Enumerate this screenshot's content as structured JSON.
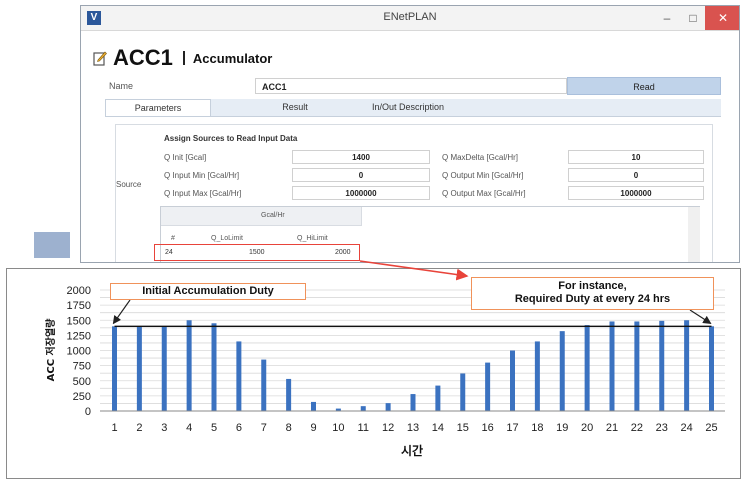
{
  "window": {
    "title": "ENetPLAN",
    "app_icon": "V",
    "minimize": "–",
    "maximize": "□",
    "close": "✕"
  },
  "header": {
    "block_name": "ACC1",
    "block_type": "Accumulator"
  },
  "name_field": {
    "label": "Name",
    "value": "ACC1"
  },
  "read_button": "Read",
  "tabs": [
    "Parameters",
    "Result",
    "In/Out Description"
  ],
  "source": {
    "label": "Source",
    "title": "Assign Sources to Read Input Data",
    "params": [
      {
        "label": "Q Init [Gcal]",
        "value": "1400"
      },
      {
        "label": "Q Input Min [Gcal/Hr]",
        "value": "0"
      },
      {
        "label": "Q Input Max [Gcal/Hr]",
        "value": "1000000"
      },
      {
        "label": "Q MaxDelta [Gcal/Hr]",
        "value": "10"
      },
      {
        "label": "Q Output Min [Gcal/Hr]",
        "value": "0"
      },
      {
        "label": "Q Output Max [Gcal/Hr]",
        "value": "1000000"
      }
    ]
  },
  "table": {
    "group_header": "Gcal/Hr",
    "columns": [
      "#",
      "Q_LoLimit",
      "Q_HiLimit"
    ],
    "row": [
      "24",
      "1500",
      "2000"
    ]
  },
  "callouts": {
    "left": "Initial Accumulation Duty",
    "right_line1": "For instance,",
    "right_line2": "Required Duty at every 24 hrs"
  },
  "colors": {
    "bar": "#3b72c0",
    "callout_border": "#f0925a",
    "highlight": "#e8433a",
    "read_button": "#c0d3ea"
  },
  "chart_data": {
    "type": "bar",
    "categories": [
      "1",
      "2",
      "3",
      "4",
      "5",
      "6",
      "7",
      "8",
      "9",
      "10",
      "11",
      "12",
      "13",
      "14",
      "15",
      "16",
      "17",
      "18",
      "19",
      "20",
      "21",
      "22",
      "23",
      "24",
      "25"
    ],
    "values": [
      1400,
      1400,
      1400,
      1500,
      1450,
      1150,
      850,
      530,
      150,
      40,
      80,
      130,
      280,
      420,
      620,
      800,
      1000,
      1150,
      1320,
      1420,
      1480,
      1480,
      1490,
      1500,
      1400
    ],
    "ylim": [
      0,
      2000
    ],
    "yticks": [
      "0",
      "250",
      "500",
      "750",
      "1000",
      "1250",
      "1500",
      "1750",
      "2000"
    ],
    "xlabel": "시간",
    "ylabel": "ACC 저장열량",
    "reference_line": 1400,
    "grid": true
  }
}
